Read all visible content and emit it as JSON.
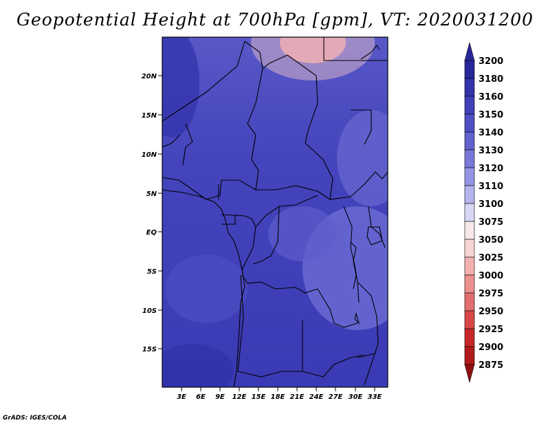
{
  "title": "Geopotential Height at 700hPa [gpm], VT: 2020031200",
  "credit": "GrADS: IGES/COLA",
  "map": {
    "lat_ticks": [
      "20N",
      "15N",
      "10N",
      "5N",
      "EQ",
      "5S",
      "10S",
      "15S"
    ],
    "lon_ticks": [
      "3E",
      "6E",
      "9E",
      "12E",
      "15E",
      "18E",
      "21E",
      "24E",
      "27E",
      "30E",
      "33E"
    ]
  },
  "colorbar": {
    "levels": [
      "3200",
      "3180",
      "3160",
      "3150",
      "3140",
      "3130",
      "3120",
      "3110",
      "3100",
      "3075",
      "3050",
      "3025",
      "3000",
      "2975",
      "2950",
      "2925",
      "2900",
      "2875"
    ],
    "colors": [
      "#28289a",
      "#3333aa",
      "#4040b8",
      "#5050c4",
      "#6262ce",
      "#7878da",
      "#9494e4",
      "#b4b4ee",
      "#d8d8f6",
      "#f6e8e8",
      "#f8d4d4",
      "#f4b0b0",
      "#ec9090",
      "#e26e6e",
      "#d84848",
      "#c82828",
      "#b01a1a",
      "#901010"
    ]
  }
}
